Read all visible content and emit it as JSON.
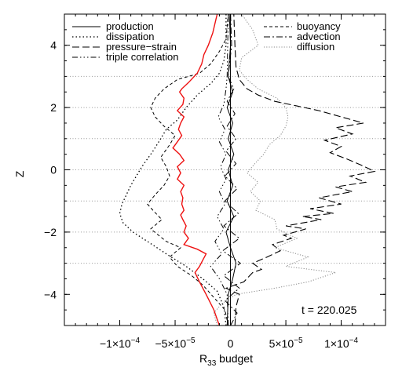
{
  "chart_data": {
    "type": "line",
    "xlabel": "R",
    "xlabel_sub": "33",
    "xlabel_rest": " budget",
    "ylabel": "Z",
    "xlim": [
      -0.00015,
      0.00014
    ],
    "ylim": [
      -5,
      5
    ],
    "x_ticks": [
      {
        "value": -0.0001,
        "label": "−1×10",
        "exp": "−4"
      },
      {
        "value": -5e-05,
        "label": "−5×10",
        "exp": "−5"
      },
      {
        "value": 0,
        "label": "0",
        "exp": ""
      },
      {
        "value": 5e-05,
        "label": "5×10",
        "exp": "−5"
      },
      {
        "value": 0.0001,
        "label": "1×10",
        "exp": "−4"
      }
    ],
    "y_ticks": [
      -4,
      -2,
      0,
      2,
      4
    ],
    "y_gridlines": [
      -3,
      -2,
      -1,
      0,
      1,
      2,
      3
    ],
    "annotation": "t = 220.025",
    "legend_left": [
      "production",
      "dissipation",
      "pressure−strain",
      "triple correlation"
    ],
    "legend_right": [
      "buoyancy",
      "advection",
      "diffusion"
    ],
    "series": [
      {
        "name": "production",
        "color": "#000000",
        "dash": "",
        "width": 1,
        "points": [
          [
            -3e-06,
            -5
          ],
          [
            -2e-06,
            -4
          ],
          [
            2e-06,
            -3.5
          ],
          [
            5e-06,
            -3
          ],
          [
            0,
            -2.5
          ],
          [
            -4e-06,
            -2
          ],
          [
            3e-06,
            -1.5
          ],
          [
            -3e-06,
            -1
          ],
          [
            2e-06,
            -0.5
          ],
          [
            -2e-06,
            0
          ],
          [
            3e-06,
            0.5
          ],
          [
            -2e-06,
            1
          ],
          [
            2e-06,
            1.5
          ],
          [
            -3e-06,
            2
          ],
          [
            2e-06,
            2.5
          ],
          [
            -2e-06,
            3
          ],
          [
            -1e-06,
            3.5
          ],
          [
            0,
            4
          ],
          [
            -1e-06,
            5
          ]
        ]
      },
      {
        "name": "dissipation",
        "color": "#000000",
        "dash": "1.5,3",
        "width": 1.3,
        "points": [
          [
            -4e-06,
            -5
          ],
          [
            -6e-06,
            -4.4
          ],
          [
            -1.2e-05,
            -3.9
          ],
          [
            -2.5e-05,
            -3.5
          ],
          [
            -4e-05,
            -3.1
          ],
          [
            -5.8e-05,
            -2.7
          ],
          [
            -7.5e-05,
            -2.3
          ],
          [
            -8.8e-05,
            -2
          ],
          [
            -9.7e-05,
            -1.7
          ],
          [
            -0.0001,
            -1.4
          ],
          [
            -9.8e-05,
            -1.1
          ],
          [
            -9.4e-05,
            -0.8
          ],
          [
            -9e-05,
            -0.5
          ],
          [
            -8.5e-05,
            -0.2
          ],
          [
            -8e-05,
            0.1
          ],
          [
            -7e-05,
            0.6
          ],
          [
            -6.3e-05,
            1
          ],
          [
            -5.8e-05,
            1.3
          ],
          [
            -4.8e-05,
            1.6
          ],
          [
            -4e-05,
            2
          ],
          [
            -3e-05,
            2.4
          ],
          [
            -1.7e-05,
            2.8
          ],
          [
            -1e-05,
            3.1
          ],
          [
            -6e-06,
            3.5
          ],
          [
            -4e-06,
            4
          ],
          [
            -4e-06,
            5
          ]
        ]
      },
      {
        "name": "pressure-strain",
        "color": "#000000",
        "dash": "9,4",
        "width": 1.1,
        "points": [
          [
            4e-06,
            -5
          ],
          [
            5e-06,
            -4.4
          ],
          [
            8e-06,
            -4
          ],
          [
            -4e-06,
            -3.8
          ],
          [
            1.2e-05,
            -3.6
          ],
          [
            2e-05,
            -3.3
          ],
          [
            2.8e-05,
            -3.2
          ],
          [
            2e-05,
            -3
          ],
          [
            3.3e-05,
            -2.8
          ],
          [
            4.5e-05,
            -2.6
          ],
          [
            3.8e-05,
            -2.4
          ],
          [
            5.5e-05,
            -2.2
          ],
          [
            4.8e-05,
            -2.1
          ],
          [
            6.8e-05,
            -1.9
          ],
          [
            5e-05,
            -1.8
          ],
          [
            8.2e-05,
            -1.6
          ],
          [
            6.5e-05,
            -1.5
          ],
          [
            9.3e-05,
            -1.4
          ],
          [
            7.2e-05,
            -1.25
          ],
          [
            0.0001,
            -1.1
          ],
          [
            8e-05,
            -0.9
          ],
          [
            0.00011,
            -0.7
          ],
          [
            9.5e-05,
            -0.55
          ],
          [
            0.000122,
            -0.4
          ],
          [
            0.000108,
            -0.2
          ],
          [
            0.00013,
            -0.05
          ],
          [
            0.000118,
            0.15
          ],
          [
            0.000105,
            0.35
          ],
          [
            9e-05,
            0.55
          ],
          [
            0.0001,
            0.75
          ],
          [
            8.5e-05,
            0.95
          ],
          [
            0.00011,
            1.15
          ],
          [
            9.5e-05,
            1.35
          ],
          [
            0.00012,
            1.5
          ],
          [
            0.0001,
            1.7
          ],
          [
            8e-05,
            1.9
          ],
          [
            6e-05,
            2.05
          ],
          [
            4e-05,
            2.2
          ],
          [
            2.5e-05,
            2.4
          ],
          [
            1.5e-05,
            2.6
          ],
          [
            8e-06,
            2.9
          ],
          [
            5e-06,
            3.3
          ],
          [
            4e-06,
            4
          ],
          [
            3e-06,
            5
          ]
        ]
      },
      {
        "name": "triple correlation",
        "color": "#000000",
        "dash": "7,3,1.5,3,1.5,3,1.5,3",
        "width": 1,
        "points": [
          [
            -2e-06,
            -5
          ],
          [
            -3e-06,
            -4
          ],
          [
            -1e-05,
            -3.5
          ],
          [
            -1.8e-05,
            -3.1
          ],
          [
            -8e-06,
            -2.7
          ],
          [
            -1.4e-05,
            -2.3
          ],
          [
            -6e-06,
            -1.9
          ],
          [
            -1.2e-05,
            -1.5
          ],
          [
            -5e-06,
            -1.1
          ],
          [
            -1e-05,
            -0.7
          ],
          [
            -4e-06,
            -0.3
          ],
          [
            -9e-06,
            0.1
          ],
          [
            -4e-06,
            0.5
          ],
          [
            -1e-05,
            0.9
          ],
          [
            -5e-06,
            1.3
          ],
          [
            -1.1e-05,
            1.7
          ],
          [
            -6e-06,
            2.1
          ],
          [
            -4e-06,
            2.6
          ],
          [
            -3e-06,
            3
          ],
          [
            -2e-06,
            5
          ]
        ]
      },
      {
        "name": "buoyancy",
        "color": "#000000",
        "dash": "4,3",
        "width": 1,
        "points": [
          [
            -2e-06,
            -5
          ],
          [
            -5e-06,
            -4.5
          ],
          [
            -1.5e-05,
            -4.1
          ],
          [
            -2.5e-05,
            -3.7
          ],
          [
            -3.5e-05,
            -3.4
          ],
          [
            -4.8e-05,
            -3.1
          ],
          [
            -5.5e-05,
            -2.8
          ],
          [
            -4.5e-05,
            -2.5
          ],
          [
            -5.8e-05,
            -2.3
          ],
          [
            -6.5e-05,
            -2.1
          ],
          [
            -7.2e-05,
            -1.9
          ],
          [
            -6.2e-05,
            -1.6
          ],
          [
            -7e-05,
            -1.3
          ],
          [
            -7.5e-05,
            -1.1
          ],
          [
            -6.8e-05,
            -0.8
          ],
          [
            -6e-05,
            -0.5
          ],
          [
            -5.5e-05,
            -0.2
          ],
          [
            -5.8e-05,
            0.1
          ],
          [
            -6.3e-05,
            0.4
          ],
          [
            -5.5e-05,
            0.8
          ],
          [
            -5e-05,
            1.1
          ],
          [
            -6e-05,
            1.4
          ],
          [
            -6.8e-05,
            1.7
          ],
          [
            -7.2e-05,
            2
          ],
          [
            -6.8e-05,
            2.3
          ],
          [
            -6e-05,
            2.6
          ],
          [
            -4.8e-05,
            2.9
          ],
          [
            -2.8e-05,
            3.1
          ],
          [
            -1.8e-05,
            3.4
          ],
          [
            -1e-05,
            3.8
          ],
          [
            -4e-06,
            4.2
          ],
          [
            -2e-06,
            5
          ]
        ]
      },
      {
        "name": "advection",
        "color": "#000000",
        "dash": "8,3,2,3",
        "width": 1,
        "points": [
          [
            0,
            -5
          ],
          [
            6e-06,
            -4.6
          ],
          [
            -5e-06,
            -4.2
          ],
          [
            8e-06,
            -3.8
          ],
          [
            -6e-06,
            -3.4
          ],
          [
            9e-06,
            -3
          ],
          [
            -7e-06,
            -2.6
          ],
          [
            8e-06,
            -2.2
          ],
          [
            -6e-06,
            -1.8
          ],
          [
            7e-06,
            -1.4
          ],
          [
            -5e-06,
            -1
          ],
          [
            6e-06,
            -0.6
          ],
          [
            -5e-06,
            -0.2
          ],
          [
            5e-06,
            0.2
          ],
          [
            -4e-06,
            0.6
          ],
          [
            5e-06,
            1
          ],
          [
            -3e-06,
            1.4
          ],
          [
            4e-06,
            1.8
          ],
          [
            -3e-06,
            2.2
          ],
          [
            3e-06,
            2.6
          ],
          [
            -2e-06,
            3
          ],
          [
            1e-06,
            4
          ],
          [
            0,
            5
          ]
        ]
      },
      {
        "name": "diffusion",
        "color": "#888888",
        "dash": "1.2,2",
        "width": 1,
        "points": [
          [
            -1.2e-05,
            -5
          ],
          [
            -1.5e-05,
            -4.6
          ],
          [
            -8e-06,
            -4.3
          ],
          [
            5e-06,
            -4
          ],
          [
            4e-05,
            -3.8
          ],
          [
            7e-05,
            -3.6
          ],
          [
            9.5e-05,
            -3.3
          ],
          [
            5e-05,
            -3.1
          ],
          [
            7e-05,
            -2.8
          ],
          [
            4e-05,
            -2.5
          ],
          [
            6e-05,
            -2.2
          ],
          [
            4.2e-05,
            -1.9
          ],
          [
            4e-05,
            -1.6
          ],
          [
            2.3e-05,
            -1.3
          ],
          [
            2.7e-05,
            -1
          ],
          [
            1.8e-05,
            -0.7
          ],
          [
            2.5e-05,
            -0.4
          ],
          [
            1.5e-05,
            -0.1
          ],
          [
            2.2e-05,
            0.2
          ],
          [
            3e-05,
            0.5
          ],
          [
            3.5e-05,
            0.8
          ],
          [
            4.5e-05,
            1.1
          ],
          [
            5e-05,
            1.4
          ],
          [
            5.2e-05,
            1.7
          ],
          [
            5e-05,
            2
          ],
          [
            4.2e-05,
            2.3
          ],
          [
            2.5e-05,
            2.6
          ],
          [
            1.5e-05,
            2.9
          ],
          [
            8e-06,
            3.2
          ],
          [
            1e-05,
            3.6
          ],
          [
            2.5e-05,
            4
          ],
          [
            2e-05,
            4.5
          ],
          [
            1e-05,
            5
          ]
        ]
      },
      {
        "name": "",
        "color": "#ee1111",
        "dash": "",
        "width": 1.4,
        "points": [
          [
            -1e-05,
            -5
          ],
          [
            -1.5e-05,
            -4.5
          ],
          [
            -2.2e-05,
            -4
          ],
          [
            -2.8e-05,
            -3.6
          ],
          [
            -3.2e-05,
            -3.3
          ],
          [
            -2.8e-05,
            -3.1
          ],
          [
            -2.5e-05,
            -2.9
          ],
          [
            -2.2e-05,
            -2.7
          ],
          [
            -3e-05,
            -2.55
          ],
          [
            -4.2e-05,
            -2.4
          ],
          [
            -3.8e-05,
            -2.2
          ],
          [
            -4.2e-05,
            -2
          ],
          [
            -4e-05,
            -1.8
          ],
          [
            -4.3e-05,
            -1.6
          ],
          [
            -4.5e-05,
            -1.45
          ],
          [
            -4.2e-05,
            -1.3
          ],
          [
            -4.4e-05,
            -1.1
          ],
          [
            -4.3e-05,
            -0.9
          ],
          [
            -4.5e-05,
            -0.7
          ],
          [
            -4.2e-05,
            -0.5
          ],
          [
            -4.8e-05,
            -0.3
          ],
          [
            -4.5e-05,
            -0.1
          ],
          [
            -4.8e-05,
            0.1
          ],
          [
            -4.2e-05,
            0.3
          ],
          [
            -4.6e-05,
            0.5
          ],
          [
            -5.2e-05,
            0.7
          ],
          [
            -4.8e-05,
            0.9
          ],
          [
            -4.4e-05,
            1.1
          ],
          [
            -4.7e-05,
            1.3
          ],
          [
            -4.5e-05,
            1.5
          ],
          [
            -4.2e-05,
            1.7
          ],
          [
            -4.8e-05,
            1.9
          ],
          [
            -4.3e-05,
            2.1
          ],
          [
            -4.2e-05,
            2.3
          ],
          [
            -4.6e-05,
            2.5
          ],
          [
            -4.4e-05,
            2.6
          ],
          [
            -3.8e-05,
            2.8
          ],
          [
            -3e-05,
            3.1
          ],
          [
            -2.6e-05,
            3.4
          ],
          [
            -2.4e-05,
            3.7
          ],
          [
            -2e-05,
            4
          ],
          [
            -1.6e-05,
            4.4
          ],
          [
            -1.2e-05,
            5
          ]
        ]
      }
    ]
  }
}
